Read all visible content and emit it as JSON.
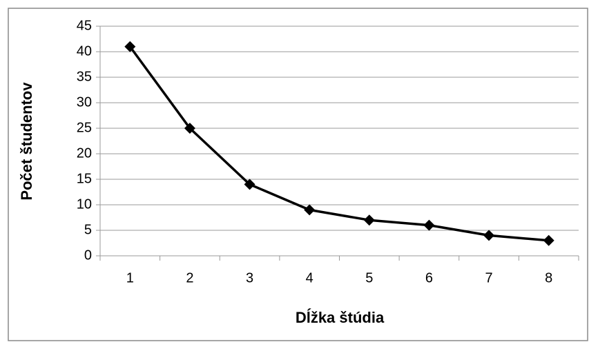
{
  "chart_data": {
    "type": "line",
    "x_label": "Dĺžka štúdia",
    "y_label": "Počet študentov",
    "categories": [
      "1",
      "2",
      "3",
      "4",
      "5",
      "6",
      "7",
      "8"
    ],
    "values": [
      41,
      25,
      14,
      9,
      7,
      6,
      4,
      3
    ],
    "color": "#000000",
    "ylim": [
      0,
      45
    ],
    "yticks": [
      0,
      5,
      10,
      15,
      20,
      25,
      30,
      35,
      40,
      45
    ],
    "grid": true
  }
}
